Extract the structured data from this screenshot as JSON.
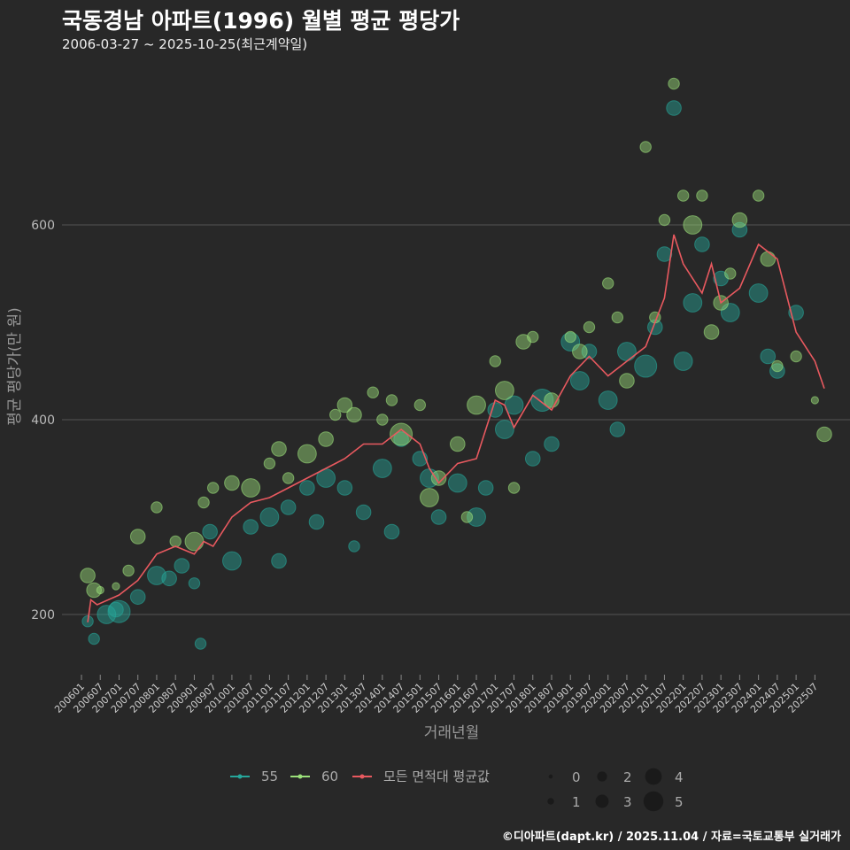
{
  "title": "국동경남 아파트(1996) 월별 평균 평당가",
  "subtitle": "2006-03-27 ~ 2025-10-25(최근계약일)",
  "footer": "©디아파트(dapt.kr) / 2025.11.04 / 자료=국토교통부 실거래가",
  "chart_data": {
    "type": "scatter",
    "title": "국동경남 아파트(1996) 월별 평균 평당가",
    "xlabel": "거래년월",
    "ylabel": "평균 평당가(만 원)",
    "ylim": [
      135,
      760
    ],
    "yticks": [
      200,
      400,
      600
    ],
    "xticks": [
      "200601",
      "200607",
      "200701",
      "200707",
      "200801",
      "200807",
      "200901",
      "200907",
      "201001",
      "201007",
      "201101",
      "201107",
      "201201",
      "201207",
      "201301",
      "201307",
      "201401",
      "201407",
      "201501",
      "201507",
      "201601",
      "201607",
      "201701",
      "201707",
      "201801",
      "201807",
      "201901",
      "201907",
      "202001",
      "202007",
      "202101",
      "202107",
      "202201",
      "202207",
      "202301",
      "202307",
      "202401",
      "202407",
      "202501",
      "202507"
    ],
    "colors": {
      "55": "#26a69a",
      "60": "#9be07a",
      "avg": "#e8595f"
    },
    "legend": {
      "series": [
        "55",
        "60",
        "모든 면적대 평균값"
      ],
      "sizes": [
        "0",
        "1",
        "2",
        "3",
        "4",
        "5"
      ]
    },
    "average": [
      [
        "200603",
        192
      ],
      [
        "200604",
        215
      ],
      [
        "200606",
        210
      ],
      [
        "200701",
        220
      ],
      [
        "200707",
        235
      ],
      [
        "200801",
        262
      ],
      [
        "200807",
        270
      ],
      [
        "200901",
        262
      ],
      [
        "200904",
        275
      ],
      [
        "200907",
        270
      ],
      [
        "201001",
        300
      ],
      [
        "201007",
        315
      ],
      [
        "201101",
        320
      ],
      [
        "201107",
        330
      ],
      [
        "201201",
        340
      ],
      [
        "201207",
        350
      ],
      [
        "201301",
        360
      ],
      [
        "201307",
        375
      ],
      [
        "201401",
        375
      ],
      [
        "201407",
        390
      ],
      [
        "201501",
        375
      ],
      [
        "201504",
        350
      ],
      [
        "201507",
        335
      ],
      [
        "201601",
        355
      ],
      [
        "201607",
        360
      ],
      [
        "201701",
        420
      ],
      [
        "201704",
        415
      ],
      [
        "201707",
        392
      ],
      [
        "201801",
        425
      ],
      [
        "201807",
        410
      ],
      [
        "201901",
        445
      ],
      [
        "201907",
        465
      ],
      [
        "202001",
        445
      ],
      [
        "202007",
        460
      ],
      [
        "202101",
        475
      ],
      [
        "202107",
        525
      ],
      [
        "202110",
        590
      ],
      [
        "202201",
        560
      ],
      [
        "202207",
        530
      ],
      [
        "202210",
        560
      ],
      [
        "202301",
        520
      ],
      [
        "202307",
        535
      ],
      [
        "202401",
        580
      ],
      [
        "202407",
        565
      ],
      [
        "202501",
        490
      ],
      [
        "202507",
        460
      ],
      [
        "202510",
        432
      ]
    ],
    "series": [
      {
        "name": "55",
        "points": [
          [
            "200603",
            193,
            2
          ],
          [
            "200605",
            175,
            2
          ],
          [
            "200609",
            200,
            4
          ],
          [
            "200612",
            205,
            3
          ],
          [
            "200701",
            203,
            5
          ],
          [
            "200707",
            218,
            3
          ],
          [
            "200801",
            240,
            4
          ],
          [
            "200805",
            237,
            3
          ],
          [
            "200809",
            250,
            3
          ],
          [
            "200901",
            232,
            2
          ],
          [
            "200903",
            170,
            2
          ],
          [
            "200906",
            285,
            3
          ],
          [
            "201001",
            255,
            4
          ],
          [
            "201007",
            290,
            3
          ],
          [
            "201101",
            300,
            4
          ],
          [
            "201104",
            255,
            3
          ],
          [
            "201107",
            310,
            3
          ],
          [
            "201201",
            330,
            3
          ],
          [
            "201204",
            295,
            3
          ],
          [
            "201207",
            340,
            4
          ],
          [
            "201301",
            330,
            3
          ],
          [
            "201304",
            270,
            2
          ],
          [
            "201307",
            305,
            3
          ],
          [
            "201401",
            350,
            4
          ],
          [
            "201404",
            285,
            3
          ],
          [
            "201407",
            380,
            3
          ],
          [
            "201501",
            360,
            3
          ],
          [
            "201504",
            340,
            4
          ],
          [
            "201507",
            300,
            3
          ],
          [
            "201601",
            335,
            4
          ],
          [
            "201607",
            300,
            4
          ],
          [
            "201610",
            330,
            3
          ],
          [
            "201701",
            410,
            3
          ],
          [
            "201704",
            390,
            4
          ],
          [
            "201707",
            415,
            4
          ],
          [
            "201801",
            360,
            3
          ],
          [
            "201804",
            420,
            5
          ],
          [
            "201807",
            375,
            3
          ],
          [
            "201901",
            480,
            4
          ],
          [
            "201904",
            440,
            4
          ],
          [
            "201907",
            470,
            3
          ],
          [
            "202001",
            420,
            4
          ],
          [
            "202004",
            390,
            3
          ],
          [
            "202007",
            470,
            4
          ],
          [
            "202101",
            455,
            5
          ],
          [
            "202104",
            495,
            3
          ],
          [
            "202107",
            570,
            3
          ],
          [
            "202110",
            720,
            3
          ],
          [
            "202201",
            460,
            4
          ],
          [
            "202204",
            520,
            4
          ],
          [
            "202207",
            580,
            3
          ],
          [
            "202301",
            545,
            3
          ],
          [
            "202304",
            510,
            4
          ],
          [
            "202307",
            595,
            3
          ],
          [
            "202401",
            530,
            4
          ],
          [
            "202404",
            465,
            3
          ],
          [
            "202407",
            450,
            3
          ],
          [
            "202501",
            510,
            3
          ]
        ]
      },
      {
        "name": "60",
        "points": [
          [
            "200603",
            240,
            3
          ],
          [
            "200605",
            225,
            3
          ],
          [
            "200607",
            225,
            1
          ],
          [
            "200612",
            229,
            1
          ],
          [
            "200704",
            245,
            2
          ],
          [
            "200707",
            280,
            3
          ],
          [
            "200801",
            310,
            2
          ],
          [
            "200807",
            275,
            2
          ],
          [
            "200901",
            275,
            4
          ],
          [
            "200904",
            315,
            2
          ],
          [
            "200907",
            330,
            2
          ],
          [
            "201001",
            335,
            3
          ],
          [
            "201007",
            330,
            4
          ],
          [
            "201101",
            355,
            2
          ],
          [
            "201104",
            370,
            3
          ],
          [
            "201107",
            340,
            2
          ],
          [
            "201201",
            365,
            4
          ],
          [
            "201207",
            380,
            3
          ],
          [
            "201210",
            405,
            2
          ],
          [
            "201301",
            415,
            3
          ],
          [
            "201304",
            405,
            3
          ],
          [
            "201310",
            428,
            2
          ],
          [
            "201401",
            400,
            2
          ],
          [
            "201404",
            420,
            2
          ],
          [
            "201407",
            385,
            5
          ],
          [
            "201501",
            415,
            2
          ],
          [
            "201504",
            320,
            4
          ],
          [
            "201507",
            340,
            3
          ],
          [
            "201601",
            375,
            3
          ],
          [
            "201604",
            300,
            2
          ],
          [
            "201607",
            415,
            4
          ],
          [
            "201701",
            460,
            2
          ],
          [
            "201704",
            430,
            4
          ],
          [
            "201707",
            330,
            2
          ],
          [
            "201710",
            480,
            3
          ],
          [
            "201801",
            485,
            2
          ],
          [
            "201807",
            420,
            3
          ],
          [
            "201901",
            485,
            2
          ],
          [
            "201904",
            470,
            3
          ],
          [
            "201907",
            495,
            2
          ],
          [
            "202001",
            540,
            2
          ],
          [
            "202004",
            505,
            2
          ],
          [
            "202007",
            440,
            3
          ],
          [
            "202101",
            680,
            2
          ],
          [
            "202104",
            505,
            2
          ],
          [
            "202107",
            605,
            2
          ],
          [
            "202110",
            745,
            2
          ],
          [
            "202201",
            630,
            2
          ],
          [
            "202204",
            600,
            4
          ],
          [
            "202207",
            630,
            2
          ],
          [
            "202210",
            490,
            3
          ],
          [
            "202301",
            520,
            3
          ],
          [
            "202304",
            550,
            2
          ],
          [
            "202307",
            605,
            3
          ],
          [
            "202401",
            630,
            2
          ],
          [
            "202404",
            565,
            3
          ],
          [
            "202407",
            455,
            2
          ],
          [
            "202501",
            465,
            2
          ],
          [
            "202507",
            420,
            1
          ],
          [
            "202510",
            385,
            3
          ]
        ]
      }
    ]
  }
}
